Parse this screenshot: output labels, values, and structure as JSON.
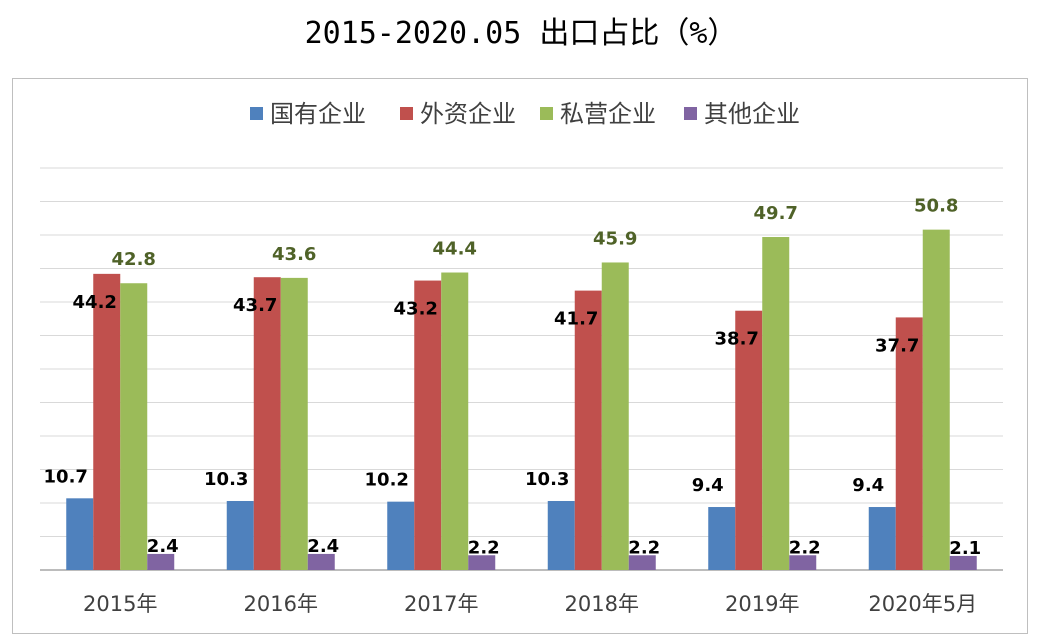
{
  "chart_data": {
    "type": "bar",
    "title": "2015-2020.05 出口占比（%）",
    "categories": [
      "2015年",
      "2016年",
      "2017年",
      "2018年",
      "2019年",
      "2020年5月"
    ],
    "series": [
      {
        "name": "国有企业",
        "color": "#4f81bd",
        "label_color": "#000000",
        "values": [
          10.7,
          10.3,
          10.2,
          10.3,
          9.4,
          9.4
        ]
      },
      {
        "name": "外资企业",
        "color": "#c0504d",
        "label_color": "#000000",
        "values": [
          44.2,
          43.7,
          43.2,
          41.7,
          38.7,
          37.7
        ]
      },
      {
        "name": "私营企业",
        "color": "#9bbb59",
        "label_color": "#4f6228",
        "values": [
          42.8,
          43.6,
          44.4,
          45.9,
          49.7,
          50.8
        ]
      },
      {
        "name": "其他企业",
        "color": "#8064a2",
        "label_color": "#000000",
        "values": [
          2.4,
          2.4,
          2.2,
          2.2,
          2.2,
          2.1
        ]
      }
    ],
    "ylim": [
      0,
      60
    ],
    "grid": true,
    "legend_position": "top",
    "xlabel": "",
    "ylabel": ""
  }
}
